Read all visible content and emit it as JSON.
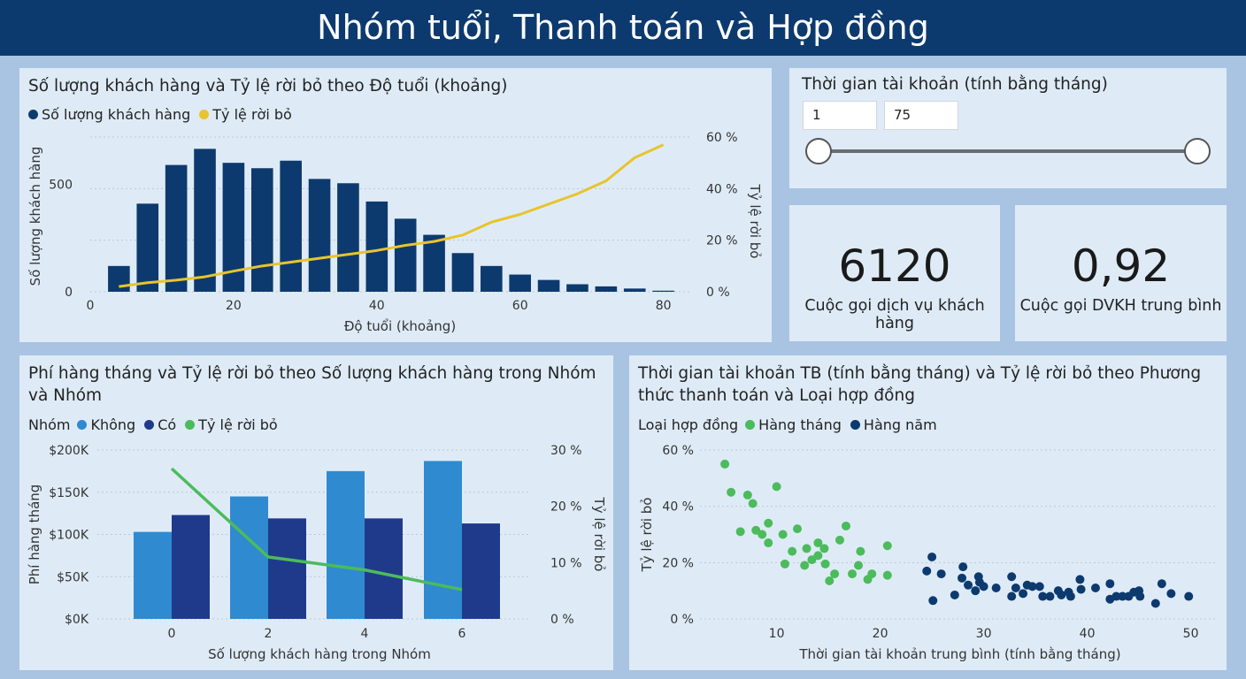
{
  "header": {
    "title": "Nhóm tuổi, Thanh toán và Hợp đồng"
  },
  "colors": {
    "navy": "#0d3a6e",
    "yellow": "#e8c42d",
    "green": "#4cbb5b",
    "lightBlue": "#2f8ad0",
    "darkBlue": "#1f3a8a",
    "scatterNavy": "#0d3a6e"
  },
  "age_chart": {
    "title": "Số lượng khách hàng và Tỷ lệ rời bỏ theo Độ tuổi (khoảng)",
    "legend": [
      {
        "label": "Số lượng khách hàng",
        "color": "#0d3a6e"
      },
      {
        "label": "Tỷ lệ rời bỏ",
        "color": "#e8c42d"
      }
    ],
    "ylabel_left": "Số lượng khách hàng",
    "ylabel_right": "Tỷ lệ rời bỏ",
    "xlabel": "Độ tuổi (khoảng)",
    "x_ticks": [
      "0",
      "20",
      "40",
      "60",
      "80"
    ],
    "y_left_ticks": [
      "0",
      "500"
    ],
    "y_right_ticks": [
      "0 %",
      "20 %",
      "40 %",
      "60 %"
    ]
  },
  "slider": {
    "title": "Thời gian tài khoản (tính bằng tháng)",
    "min_value": "1",
    "max_value": "75",
    "low_fraction": 0,
    "high_fraction": 1
  },
  "kpi": [
    {
      "value": "6120",
      "label": "Cuộc gọi dịch vụ khách hàng"
    },
    {
      "value": "0,92",
      "label": "Cuộc gọi DVKH trung bình"
    }
  ],
  "group_chart": {
    "title": "Phí hàng tháng và Tỷ lệ rời bỏ theo Số lượng khách hàng trong Nhóm và Nhóm",
    "legend_title": "Nhóm",
    "legend": [
      {
        "label": "Không",
        "color": "#2f8ad0"
      },
      {
        "label": "Có",
        "color": "#1f3a8a"
      },
      {
        "label": "Tỷ lệ rời bỏ",
        "color": "#4cbb5b"
      }
    ],
    "ylabel_left": "Phí hàng tháng",
    "ylabel_right": "Tỷ lệ rời bỏ",
    "xlabel": "Số lượng khách hàng trong Nhóm",
    "x_ticks": [
      "0",
      "2",
      "4",
      "6"
    ],
    "y_left_ticks": [
      "$0K",
      "$50K",
      "$100K",
      "$150K",
      "$200K"
    ],
    "y_right_ticks": [
      "0 %",
      "10 %",
      "20 %",
      "30 %"
    ]
  },
  "scatter_chart": {
    "title": "Thời gian tài khoản TB (tính bằng tháng) và Tỷ lệ rời bỏ theo Phương thức thanh toán và Loại hợp đồng",
    "legend_title": "Loại hợp đồng",
    "legend": [
      {
        "label": "Hàng tháng",
        "color": "#4cbb5b"
      },
      {
        "label": "Hàng năm",
        "color": "#0d3a6e"
      }
    ],
    "ylabel": "Tỷ lệ rời bỏ",
    "xlabel": "Thời gian tài khoản trung bình (tính bằng tháng)",
    "x_ticks": [
      "10",
      "20",
      "30",
      "40",
      "50"
    ],
    "y_ticks": [
      "0 %",
      "20 %",
      "40 %",
      "60 %"
    ]
  },
  "chart_data": [
    {
      "type": "bar",
      "name_ref": "age_chart",
      "x": [
        4,
        8,
        12,
        16,
        20,
        24,
        28,
        32,
        36,
        40,
        44,
        48,
        52,
        56,
        60,
        64,
        68,
        72,
        76,
        80
      ],
      "series": [
        {
          "name": "Số lượng khách hàng",
          "values": [
            120,
            410,
            590,
            665,
            600,
            575,
            610,
            525,
            505,
            420,
            340,
            265,
            180,
            120,
            80,
            55,
            35,
            25,
            15,
            5
          ]
        },
        {
          "name": "Tỷ lệ rời bỏ",
          "type": "line",
          "values": [
            2,
            3.5,
            4.5,
            5.8,
            8,
            10,
            11.5,
            13,
            14.5,
            16,
            18,
            19.5,
            22,
            27,
            30,
            34,
            38,
            43,
            52,
            57
          ]
        }
      ],
      "xlim": [
        0,
        84
      ],
      "ylim_left": [
        0,
        720
      ],
      "ylim_right": [
        0,
        60
      ]
    },
    {
      "type": "bar",
      "name_ref": "group_chart",
      "categories": [
        "0",
        "2",
        "4",
        "6"
      ],
      "series": [
        {
          "name": "Không",
          "values": [
            103,
            145,
            175,
            187
          ]
        },
        {
          "name": "Có",
          "values": [
            123,
            119,
            119,
            113
          ]
        },
        {
          "name": "Tỷ lệ rời bỏ",
          "type": "line",
          "values": [
            26.7,
            11,
            8.7,
            5.2
          ]
        }
      ],
      "ylim_left": [
        0,
        200
      ],
      "ylim_right": [
        0,
        30
      ]
    },
    {
      "type": "scatter",
      "name_ref": "scatter_chart",
      "series": [
        {
          "name": "Hàng tháng",
          "points": [
            [
              5,
              55
            ],
            [
              5.6,
              45
            ],
            [
              6.5,
              31
            ],
            [
              7.2,
              44
            ],
            [
              7.7,
              41
            ],
            [
              8,
              31.5
            ],
            [
              8.6,
              30
            ],
            [
              9.2,
              34
            ],
            [
              9.2,
              27
            ],
            [
              10,
              47
            ],
            [
              10.6,
              30
            ],
            [
              10.8,
              19.5
            ],
            [
              11.5,
              24
            ],
            [
              12,
              32
            ],
            [
              12.7,
              19
            ],
            [
              12.9,
              25
            ],
            [
              13.4,
              21
            ],
            [
              14,
              27
            ],
            [
              14,
              22.5
            ],
            [
              14.6,
              25
            ],
            [
              14.7,
              19.5
            ],
            [
              15.1,
              13.5
            ],
            [
              15.6,
              16
            ],
            [
              16.1,
              28
            ],
            [
              16.7,
              33
            ],
            [
              17.3,
              16
            ],
            [
              17.9,
              19
            ],
            [
              18.1,
              24
            ],
            [
              18.8,
              14
            ],
            [
              19.2,
              16
            ],
            [
              20.7,
              15.5
            ],
            [
              20.7,
              26
            ]
          ]
        },
        {
          "name": "Hàng năm",
          "points": [
            [
              24.5,
              17
            ],
            [
              25,
              22
            ],
            [
              25.1,
              6.5
            ],
            [
              25.9,
              16
            ],
            [
              27.2,
              8.5
            ],
            [
              27.9,
              14.5
            ],
            [
              28,
              18.5
            ],
            [
              28.5,
              12
            ],
            [
              29.2,
              10
            ],
            [
              29.5,
              15
            ],
            [
              29.6,
              13
            ],
            [
              30,
              11.5
            ],
            [
              31.2,
              11
            ],
            [
              32.7,
              15
            ],
            [
              32.7,
              8
            ],
            [
              33.1,
              11
            ],
            [
              33.8,
              9
            ],
            [
              34.2,
              12
            ],
            [
              34.7,
              11.5
            ],
            [
              35.4,
              11.5
            ],
            [
              35.7,
              8
            ],
            [
              36.4,
              8
            ],
            [
              37.2,
              10
            ],
            [
              37.5,
              8.5
            ],
            [
              38.2,
              9.5
            ],
            [
              38.4,
              8
            ],
            [
              39.3,
              14
            ],
            [
              39.4,
              10.5
            ],
            [
              40.8,
              11
            ],
            [
              42.2,
              12.5
            ],
            [
              42.2,
              7
            ],
            [
              42.8,
              8
            ],
            [
              43.4,
              8
            ],
            [
              44,
              8
            ],
            [
              44.5,
              9.5
            ],
            [
              45,
              10
            ],
            [
              45.1,
              8
            ],
            [
              46.6,
              5.5
            ],
            [
              47.2,
              12.5
            ],
            [
              48.1,
              9
            ],
            [
              49.8,
              8
            ]
          ]
        }
      ],
      "xlim": [
        2,
        52
      ],
      "ylim": [
        0,
        60
      ]
    }
  ]
}
